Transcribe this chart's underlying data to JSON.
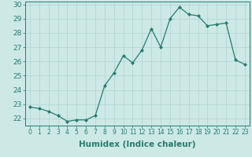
{
  "x": [
    0,
    1,
    2,
    3,
    4,
    5,
    6,
    7,
    8,
    9,
    10,
    11,
    12,
    13,
    14,
    15,
    16,
    17,
    18,
    19,
    20,
    21,
    22,
    23
  ],
  "y": [
    22.8,
    22.7,
    22.5,
    22.2,
    21.8,
    21.9,
    21.9,
    22.2,
    24.3,
    25.2,
    26.4,
    25.9,
    26.8,
    28.3,
    27.0,
    29.0,
    29.8,
    29.3,
    29.2,
    28.5,
    28.6,
    28.7,
    26.1,
    25.8
  ],
  "line_color": "#2a7a6e",
  "marker": "D",
  "marker_size": 2.0,
  "bg_color": "#cce9e6",
  "grid_color": "#b0d4d0",
  "xlabel": "Humidex (Indice chaleur)",
  "ylim": [
    21.5,
    30.2
  ],
  "yticks": [
    22,
    23,
    24,
    25,
    26,
    27,
    28,
    29,
    30
  ],
  "xticks": [
    0,
    1,
    2,
    3,
    4,
    5,
    6,
    7,
    8,
    9,
    10,
    11,
    12,
    13,
    14,
    15,
    16,
    17,
    18,
    19,
    20,
    21,
    22,
    23
  ],
  "xlabel_fontsize": 7.5,
  "ytick_fontsize": 6.5,
  "xtick_fontsize": 5.5
}
